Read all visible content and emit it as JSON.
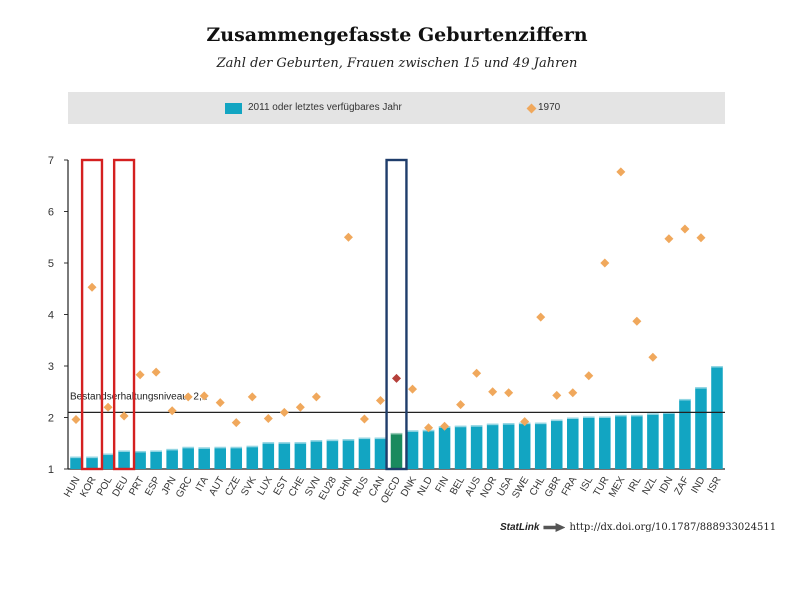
{
  "header": {
    "title": "Zusammengefasste Geburtenziffern",
    "subtitle": "Zahl der Geburten, Frauen zwischen 15 und 49 Jahren"
  },
  "legend": {
    "bars_label": "2011 oder letztes verfügbares Jahr",
    "markers_label": "1970"
  },
  "colors": {
    "bar": "#12a5c2",
    "bar_highlight": "#1a8a5e",
    "marker": "#f0a85c",
    "marker_highlight": "#b5403a",
    "box_red": "#d42020",
    "box_blue": "#1f3d6b"
  },
  "chart_data": {
    "type": "bar",
    "title": "Zusammengefasste Geburtenziffern",
    "subtitle": "Zahl der Geburten, Frauen zwischen 15 und 49 Jahren",
    "xlabel": "",
    "ylabel": "",
    "ylim": [
      1,
      7
    ],
    "yticks": [
      1,
      2,
      3,
      4,
      5,
      6,
      7
    ],
    "categories": [
      "HUN",
      "KOR",
      "POL",
      "DEU",
      "PRT",
      "ESP",
      "JPN",
      "GRC",
      "ITA",
      "AUT",
      "CZE",
      "SVK",
      "LUX",
      "EST",
      "CHE",
      "SVN",
      "EU28",
      "CHN",
      "RUS",
      "CAN",
      "OECD",
      "DNK",
      "NLD",
      "FIN",
      "BEL",
      "AUS",
      "NOR",
      "USA",
      "SWE",
      "CHL",
      "GBR",
      "FRA",
      "ISL",
      "TUR",
      "MEX",
      "IRL",
      "NZL",
      "IDN",
      "ZAF",
      "IND",
      "ISR"
    ],
    "series": [
      {
        "name": "2011 oder letztes verfügbares Jahr",
        "kind": "bar",
        "values": [
          1.24,
          1.24,
          1.3,
          1.36,
          1.35,
          1.36,
          1.39,
          1.43,
          1.42,
          1.43,
          1.43,
          1.45,
          1.52,
          1.52,
          1.52,
          1.56,
          1.57,
          1.58,
          1.61,
          1.61,
          1.7,
          1.75,
          1.76,
          1.83,
          1.84,
          1.85,
          1.88,
          1.89,
          1.9,
          1.9,
          1.96,
          2.0,
          2.02,
          2.02,
          2.05,
          2.05,
          2.08,
          2.1,
          2.36,
          2.59,
          3.0
        ]
      },
      {
        "name": "1970",
        "kind": "marker",
        "values": [
          1.96,
          4.53,
          2.2,
          2.03,
          2.83,
          2.88,
          2.13,
          2.4,
          2.42,
          2.29,
          1.9,
          2.4,
          1.98,
          2.1,
          2.2,
          2.4,
          null,
          5.5,
          1.97,
          2.33,
          2.76,
          2.55,
          1.8,
          1.83,
          2.25,
          2.86,
          2.5,
          2.48,
          1.92,
          3.95,
          2.43,
          2.48,
          2.81,
          5.0,
          6.77,
          3.87,
          3.17,
          5.47,
          5.66,
          5.49,
          null
        ]
      }
    ],
    "highlight_category": "OECD",
    "reference_line": {
      "value": 2.1,
      "label": "Bestandserhaltungsniveau: 2,1"
    },
    "annotations": [
      {
        "type": "box",
        "category": "KOR",
        "color": "red"
      },
      {
        "type": "box",
        "category": "DEU",
        "color": "red"
      },
      {
        "type": "box",
        "category": "OECD",
        "color": "blue"
      }
    ]
  },
  "statlink": {
    "brand": "StatLink",
    "url": "http://dx.doi.org/10.1787/888933024511"
  }
}
